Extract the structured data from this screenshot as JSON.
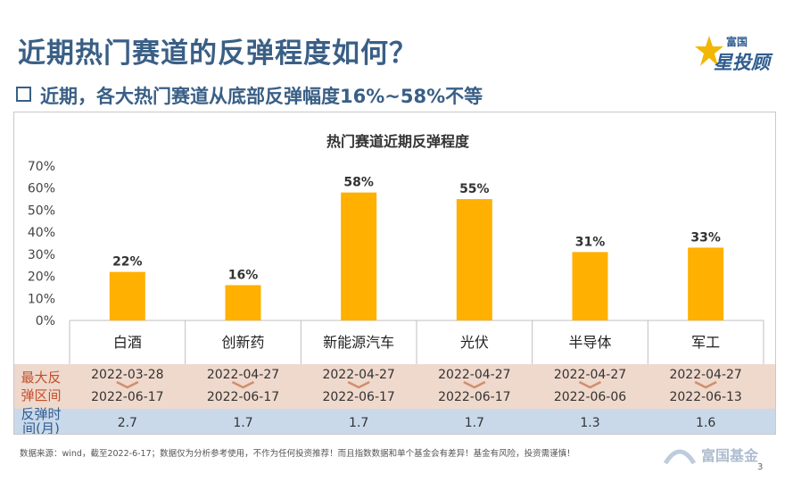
{
  "slide": {
    "title": "近期热门赛道的反弹程度如何？",
    "subtitle": "近期，各大热门赛道从底部反弹幅度16%~58%不等",
    "footnote": "数据来源：wind，截至2022-6-17；数据仅为分析参考使用，不作为任何投资推荐！而且指数数据和单个基金会有差异！基金有风险，投资需谨慎！",
    "page_number": "3"
  },
  "logo": {
    "top_text": "富国",
    "main_text": "星投顾"
  },
  "watermark": {
    "text": "富国基金"
  },
  "colors": {
    "title": "#3a5f86",
    "bar": "#ffb000",
    "row_range": "#efd8cc",
    "row_time": "#c9d9ea",
    "row_label": "#c0502d",
    "row_time_label": "#2f5c8f"
  },
  "chart_data": {
    "type": "bar",
    "title": "热门赛道近期反弹程度",
    "categories": [
      "白酒",
      "创新药",
      "新能源汽车",
      "光伏",
      "半导体",
      "军工"
    ],
    "values": [
      22,
      16,
      58,
      55,
      31,
      33
    ],
    "value_labels": [
      "22%",
      "16%",
      "58%",
      "55%",
      "31%",
      "33%"
    ],
    "ylim": [
      0,
      70
    ],
    "yticks": [
      "0%",
      "10%",
      "20%",
      "30%",
      "40%",
      "50%",
      "60%",
      "70%"
    ],
    "grid": false,
    "table": {
      "range_label": "最大反弹区间",
      "duration_label": "反弹时间(月)",
      "range_start": [
        "2022-03-28",
        "2022-04-27",
        "2022-04-27",
        "2022-04-27",
        "2022-04-27",
        "2022-04-27"
      ],
      "range_end": [
        "2022-06-17",
        "2022-06-17",
        "2022-06-17",
        "2022-06-17",
        "2022-06-06",
        "2022-06-13"
      ],
      "duration": [
        "2.7",
        "1.7",
        "1.7",
        "1.7",
        "1.3",
        "1.6"
      ]
    }
  }
}
